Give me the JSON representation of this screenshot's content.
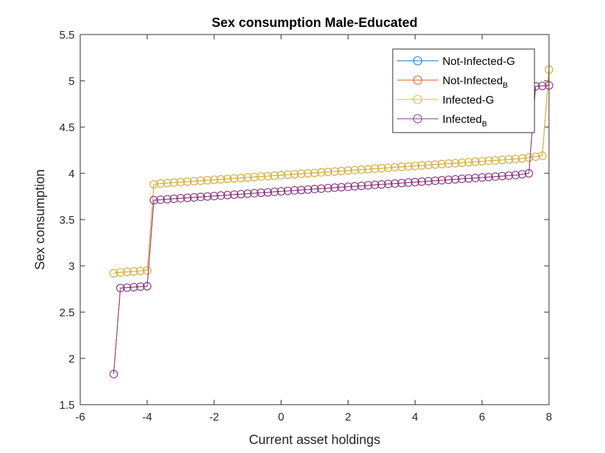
{
  "chart_data": {
    "type": "line",
    "title": "Sex consumption Male-Educated",
    "xlabel": "Current asset holdings",
    "ylabel": "Sex consumption",
    "xlim": [
      -6,
      8
    ],
    "ylim": [
      1.5,
      5.5
    ],
    "xticks": [
      "-6",
      "-4",
      "-2",
      "0",
      "2",
      "4",
      "6",
      "8"
    ],
    "yticks": [
      "1.5",
      "2",
      "2.5",
      "3",
      "3.5",
      "4",
      "4.5",
      "5",
      "5.5"
    ],
    "legend_position": "top-right",
    "marker": "circle",
    "series": [
      {
        "name": "Not-Infected-G",
        "color": "#0072BD",
        "x": [
          -5,
          -4.8,
          -4.6,
          -4.4,
          -4.2,
          -4.0,
          -3.8,
          -3.6,
          -3.4,
          -3.2,
          -3.0,
          -2.8,
          -2.6,
          -2.4,
          -2.2,
          -2.0,
          -1.8,
          -1.6,
          -1.4,
          -1.2,
          -1.0,
          -0.8,
          -0.6,
          -0.4,
          -0.2,
          0.0,
          0.2,
          0.4,
          0.6,
          0.8,
          1.0,
          1.2,
          1.4,
          1.6,
          1.8,
          2.0,
          2.2,
          2.4,
          2.6,
          2.8,
          3.0,
          3.2,
          3.4,
          3.6,
          3.8,
          4.0,
          4.2,
          4.4,
          4.6,
          4.8,
          5.0,
          5.2,
          5.4,
          5.6,
          5.8,
          6.0,
          6.2,
          6.4,
          6.6,
          6.8,
          7.0,
          7.2,
          7.4,
          7.6,
          7.8,
          8.0
        ],
        "y": [
          2.92,
          2.93,
          2.935,
          2.94,
          2.945,
          2.95,
          3.88,
          3.89,
          3.895,
          3.9,
          3.905,
          3.91,
          3.915,
          3.92,
          3.925,
          3.93,
          3.935,
          3.94,
          3.945,
          3.95,
          3.955,
          3.96,
          3.965,
          3.97,
          3.975,
          3.98,
          3.985,
          3.99,
          3.995,
          4.0,
          4.005,
          4.01,
          4.015,
          4.02,
          4.025,
          4.03,
          4.035,
          4.04,
          4.045,
          4.05,
          4.055,
          4.06,
          4.065,
          4.07,
          4.075,
          4.08,
          4.085,
          4.09,
          4.095,
          4.1,
          4.105,
          4.11,
          4.115,
          4.12,
          4.125,
          4.13,
          4.135,
          4.14,
          4.145,
          4.15,
          4.155,
          4.16,
          4.17,
          4.18,
          4.19,
          5.12
        ]
      },
      {
        "name": "Not-Infected",
        "name_sub": "B",
        "color": "#D95319",
        "x": [
          -5,
          -4.8,
          -4.6,
          -4.4,
          -4.2,
          -4.0,
          -3.8,
          -3.6,
          -3.4,
          -3.2,
          -3.0,
          -2.8,
          -2.6,
          -2.4,
          -2.2,
          -2.0,
          -1.8,
          -1.6,
          -1.4,
          -1.2,
          -1.0,
          -0.8,
          -0.6,
          -0.4,
          -0.2,
          0.0,
          0.2,
          0.4,
          0.6,
          0.8,
          1.0,
          1.2,
          1.4,
          1.6,
          1.8,
          2.0,
          2.2,
          2.4,
          2.6,
          2.8,
          3.0,
          3.2,
          3.4,
          3.6,
          3.8,
          4.0,
          4.2,
          4.4,
          4.6,
          4.8,
          5.0,
          5.2,
          5.4,
          5.6,
          5.8,
          6.0,
          6.2,
          6.4,
          6.6,
          6.8,
          7.0,
          7.2,
          7.4,
          7.6,
          7.8,
          8.0
        ],
        "y": [
          1.83,
          2.76,
          2.765,
          2.77,
          2.775,
          2.78,
          3.71,
          3.715,
          3.72,
          3.725,
          3.73,
          3.735,
          3.74,
          3.745,
          3.75,
          3.755,
          3.76,
          3.765,
          3.77,
          3.775,
          3.78,
          3.785,
          3.79,
          3.795,
          3.8,
          3.805,
          3.81,
          3.815,
          3.82,
          3.825,
          3.83,
          3.835,
          3.84,
          3.845,
          3.85,
          3.855,
          3.86,
          3.865,
          3.87,
          3.875,
          3.88,
          3.885,
          3.89,
          3.895,
          3.9,
          3.905,
          3.91,
          3.915,
          3.92,
          3.925,
          3.93,
          3.935,
          3.94,
          3.945,
          3.95,
          3.955,
          3.96,
          3.965,
          3.97,
          3.975,
          3.98,
          3.99,
          4.0,
          4.94,
          4.945,
          4.95
        ]
      },
      {
        "name": "Infected-G",
        "color": "#EDB120",
        "x": [
          -5,
          -4.8,
          -4.6,
          -4.4,
          -4.2,
          -4.0,
          -3.8,
          -3.6,
          -3.4,
          -3.2,
          -3.0,
          -2.8,
          -2.6,
          -2.4,
          -2.2,
          -2.0,
          -1.8,
          -1.6,
          -1.4,
          -1.2,
          -1.0,
          -0.8,
          -0.6,
          -0.4,
          -0.2,
          0.0,
          0.2,
          0.4,
          0.6,
          0.8,
          1.0,
          1.2,
          1.4,
          1.6,
          1.8,
          2.0,
          2.2,
          2.4,
          2.6,
          2.8,
          3.0,
          3.2,
          3.4,
          3.6,
          3.8,
          4.0,
          4.2,
          4.4,
          4.6,
          4.8,
          5.0,
          5.2,
          5.4,
          5.6,
          5.8,
          6.0,
          6.2,
          6.4,
          6.6,
          6.8,
          7.0,
          7.2,
          7.4,
          7.6,
          7.8,
          8.0
        ],
        "y": [
          2.92,
          2.93,
          2.935,
          2.94,
          2.945,
          2.95,
          3.88,
          3.89,
          3.895,
          3.9,
          3.905,
          3.91,
          3.915,
          3.92,
          3.925,
          3.93,
          3.935,
          3.94,
          3.945,
          3.95,
          3.955,
          3.96,
          3.965,
          3.97,
          3.975,
          3.98,
          3.985,
          3.99,
          3.995,
          4.0,
          4.005,
          4.01,
          4.015,
          4.02,
          4.025,
          4.03,
          4.035,
          4.04,
          4.045,
          4.05,
          4.055,
          4.06,
          4.065,
          4.07,
          4.075,
          4.08,
          4.085,
          4.09,
          4.095,
          4.1,
          4.105,
          4.11,
          4.115,
          4.12,
          4.125,
          4.13,
          4.135,
          4.14,
          4.145,
          4.15,
          4.155,
          4.16,
          4.17,
          4.18,
          4.19,
          5.12
        ]
      },
      {
        "name": "Infected",
        "name_sub": "B",
        "color": "#7E2F8E",
        "x": [
          -5,
          -4.8,
          -4.6,
          -4.4,
          -4.2,
          -4.0,
          -3.8,
          -3.6,
          -3.4,
          -3.2,
          -3.0,
          -2.8,
          -2.6,
          -2.4,
          -2.2,
          -2.0,
          -1.8,
          -1.6,
          -1.4,
          -1.2,
          -1.0,
          -0.8,
          -0.6,
          -0.4,
          -0.2,
          0.0,
          0.2,
          0.4,
          0.6,
          0.8,
          1.0,
          1.2,
          1.4,
          1.6,
          1.8,
          2.0,
          2.2,
          2.4,
          2.6,
          2.8,
          3.0,
          3.2,
          3.4,
          3.6,
          3.8,
          4.0,
          4.2,
          4.4,
          4.6,
          4.8,
          5.0,
          5.2,
          5.4,
          5.6,
          5.8,
          6.0,
          6.2,
          6.4,
          6.6,
          6.8,
          7.0,
          7.2,
          7.4,
          7.6,
          7.8,
          8.0
        ],
        "y": [
          1.83,
          2.76,
          2.765,
          2.77,
          2.775,
          2.78,
          3.71,
          3.715,
          3.72,
          3.725,
          3.73,
          3.735,
          3.74,
          3.745,
          3.75,
          3.755,
          3.76,
          3.765,
          3.77,
          3.775,
          3.78,
          3.785,
          3.79,
          3.795,
          3.8,
          3.805,
          3.81,
          3.815,
          3.82,
          3.825,
          3.83,
          3.835,
          3.84,
          3.845,
          3.85,
          3.855,
          3.86,
          3.865,
          3.87,
          3.875,
          3.88,
          3.885,
          3.89,
          3.895,
          3.9,
          3.905,
          3.91,
          3.915,
          3.92,
          3.925,
          3.93,
          3.935,
          3.94,
          3.945,
          3.95,
          3.955,
          3.96,
          3.965,
          3.97,
          3.975,
          3.98,
          3.99,
          4.0,
          4.94,
          4.945,
          4.95
        ]
      }
    ]
  }
}
